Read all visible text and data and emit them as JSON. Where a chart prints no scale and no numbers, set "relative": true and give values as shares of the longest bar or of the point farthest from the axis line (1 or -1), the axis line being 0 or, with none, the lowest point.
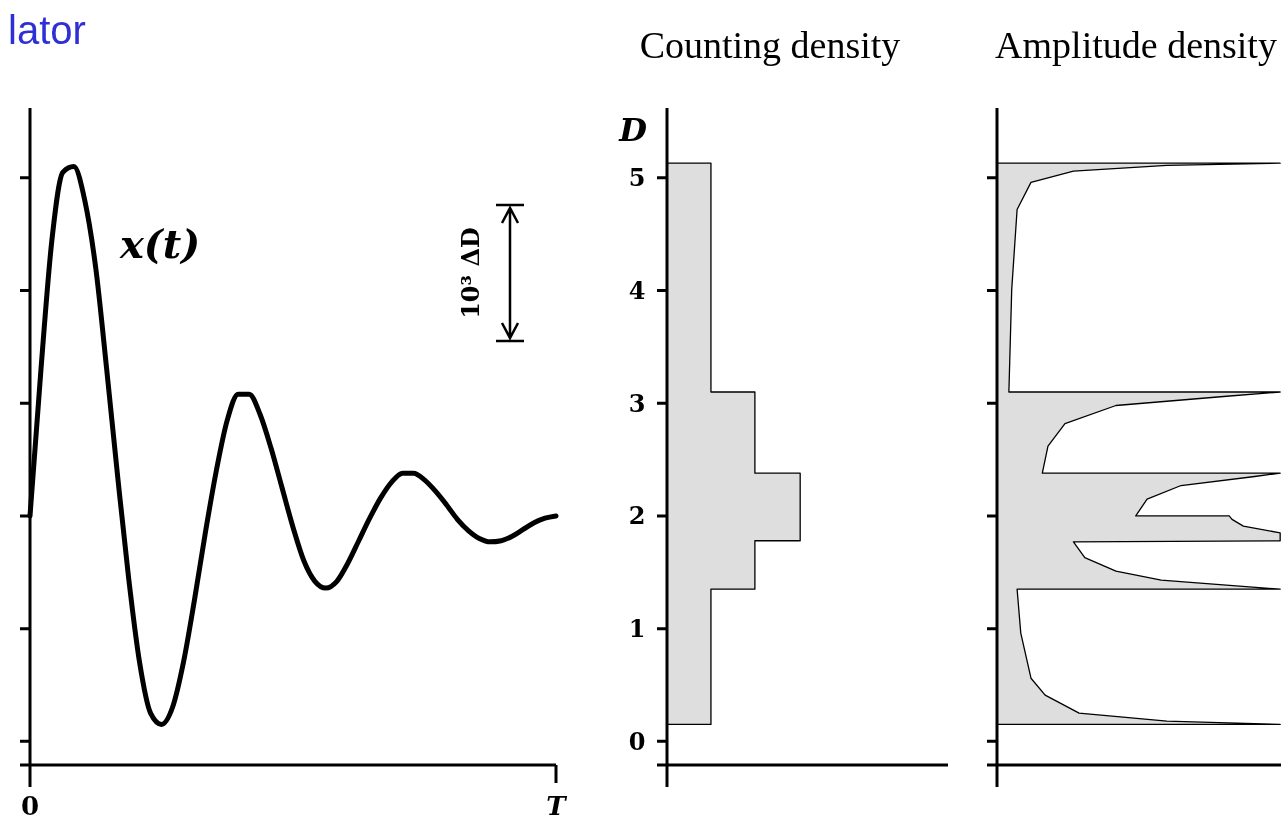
{
  "chart_data": [
    {
      "type": "line",
      "title": "lator",
      "ylim": [
        -0.21,
        5.62
      ],
      "yticks": [
        {
          "value": 0,
          "label": null
        },
        {
          "value": 1,
          "label": null
        },
        {
          "value": 2,
          "label": null
        },
        {
          "value": 3,
          "label": null
        },
        {
          "value": 4,
          "label": null
        },
        {
          "value": 5,
          "label": null
        }
      ],
      "tick_labels": "x",
      "annotations": [
        "10³ ΔD"
      ],
      "categories": [
        "0",
        null,
        null,
        null,
        null,
        null,
        null,
        null,
        null,
        null,
        null,
        null,
        null,
        null,
        null,
        null,
        null,
        null,
        null,
        null,
        null,
        null,
        null,
        null,
        null,
        null,
        null,
        null,
        null,
        null,
        null,
        null,
        null,
        null,
        null,
        null,
        null,
        null,
        null,
        null,
        null,
        null,
        null,
        null,
        null,
        null,
        null,
        null,
        "T"
      ],
      "series": [
        {
          "name": "x(t)",
          "color": "#000000",
          "values": [
            2.0,
            3.3,
            4.45,
            5.05,
            5.1,
            4.8,
            4.2,
            3.3,
            2.35,
            1.45,
            0.7,
            0.25,
            0.15,
            0.3,
            0.7,
            1.25,
            1.85,
            2.4,
            2.85,
            3.08,
            3.08,
            2.9,
            2.6,
            2.25,
            1.9,
            1.6,
            1.42,
            1.36,
            1.42,
            1.58,
            1.78,
            1.98,
            2.16,
            2.3,
            2.38,
            2.38,
            2.32,
            2.22,
            2.1,
            1.97,
            1.87,
            1.8,
            1.77,
            1.78,
            1.82,
            1.88,
            1.94,
            1.98,
            2.0
          ]
        }
      ]
    },
    {
      "type": "area",
      "title": "Counting density",
      "ylabel": "D",
      "orientation": "horizontal",
      "relative": true,
      "color": "#dedede",
      "ylim": [
        -0.21,
        5.62
      ],
      "yticks": [
        0,
        1,
        2,
        3,
        4,
        5
      ],
      "tick_labels": "y",
      "x": [
        0.15,
        1.35,
        1.35,
        1.78,
        1.78,
        2.38,
        2.38,
        3.1,
        3.1,
        5.13
      ],
      "values": [
        0.33,
        0.33,
        0.66,
        0.66,
        1,
        1,
        0.66,
        0.66,
        0.33,
        0.33
      ]
    },
    {
      "type": "area",
      "title": "Amplitude density",
      "orientation": "horizontal",
      "relative": true,
      "color": "#dedede",
      "ylim": [
        -0.21,
        5.62
      ],
      "yticks": [
        {
          "value": 0,
          "label": null
        },
        {
          "value": 1,
          "label": null
        },
        {
          "value": 2,
          "label": null
        },
        {
          "value": 3,
          "label": null
        },
        {
          "value": 4,
          "label": null
        },
        {
          "value": 5,
          "label": null
        }
      ],
      "tick_labels": false,
      "x": [
        0.15,
        0.18,
        0.25,
        0.41,
        0.56,
        0.96,
        1.35,
        1.35,
        1.43,
        1.51,
        1.63,
        1.77,
        1.78,
        1.85,
        1.91,
        1.97,
        2.0,
        2.0,
        2.15,
        2.27,
        2.35,
        2.38,
        2.38,
        2.62,
        2.82,
        2.98,
        3.06,
        3.1,
        3.1,
        4.01,
        4.72,
        4.96,
        5.06,
        5.11,
        5.13
      ],
      "values": [
        1,
        0.6,
        0.29,
        0.17,
        0.12,
        0.084,
        0.071,
        1,
        0.58,
        0.42,
        0.31,
        0.27,
        1,
        1,
        0.87,
        0.83,
        0.82,
        0.49,
        0.53,
        0.65,
        0.91,
        1,
        0.16,
        0.18,
        0.24,
        0.42,
        0.8,
        1,
        0.042,
        0.052,
        0.071,
        0.12,
        0.27,
        0.6,
        1
      ]
    }
  ]
}
